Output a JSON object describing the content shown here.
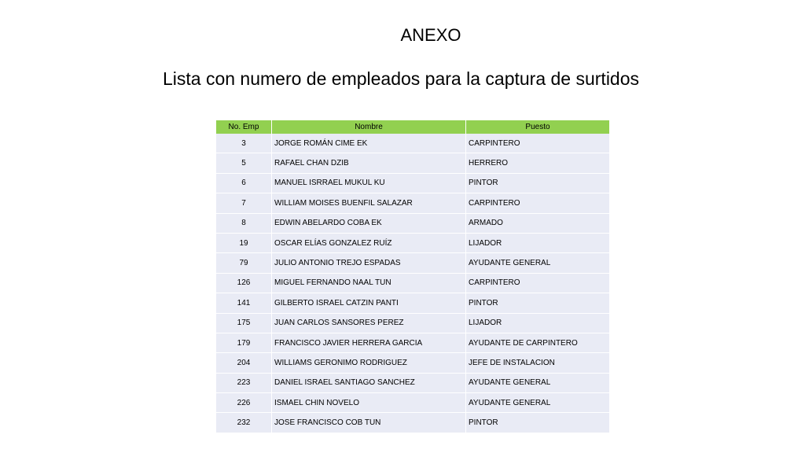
{
  "title": "ANEXO",
  "subtitle": "Lista con numero de empleados para la captura de surtidos",
  "colors": {
    "header_bg": "#92d050",
    "row_bg": "#e9ebf5"
  },
  "table": {
    "headers": [
      "No. Emp",
      "Nombre",
      "Puesto"
    ],
    "rows": [
      [
        "3",
        "JORGE ROMÁN CIME EK",
        "CARPINTERO"
      ],
      [
        "5",
        "RAFAEL CHAN DZIB",
        "HERRERO"
      ],
      [
        "6",
        "MANUEL ISRRAEL MUKUL KU",
        "PINTOR"
      ],
      [
        "7",
        "WILLIAM MOISES BUENFIL SALAZAR",
        "CARPINTERO"
      ],
      [
        "8",
        "EDWIN ABELARDO COBA EK",
        "ARMADO"
      ],
      [
        "19",
        "OSCAR ELÍAS GONZALEZ RUÍZ",
        "LIJADOR"
      ],
      [
        "79",
        "JULIO ANTONIO TREJO ESPADAS",
        "AYUDANTE GENERAL"
      ],
      [
        "126",
        "MIGUEL FERNANDO NAAL TUN",
        "CARPINTERO"
      ],
      [
        "141",
        "GILBERTO ISRAEL CATZIN PANTI",
        "PINTOR"
      ],
      [
        "175",
        "JUAN CARLOS SANSORES PEREZ",
        "LIJADOR"
      ],
      [
        "179",
        "FRANCISCO JAVIER HERRERA GARCIA",
        "AYUDANTE DE CARPINTERO"
      ],
      [
        "204",
        "WILLIAMS GERONIMO RODRIGUEZ",
        "JEFE DE INSTALACION"
      ],
      [
        "223",
        "DANIEL ISRAEL SANTIAGO SANCHEZ",
        "AYUDANTE GENERAL"
      ],
      [
        "226",
        "ISMAEL CHIN NOVELO",
        "AYUDANTE GENERAL"
      ],
      [
        "232",
        "JOSE FRANCISCO COB TUN",
        "PINTOR"
      ]
    ]
  }
}
